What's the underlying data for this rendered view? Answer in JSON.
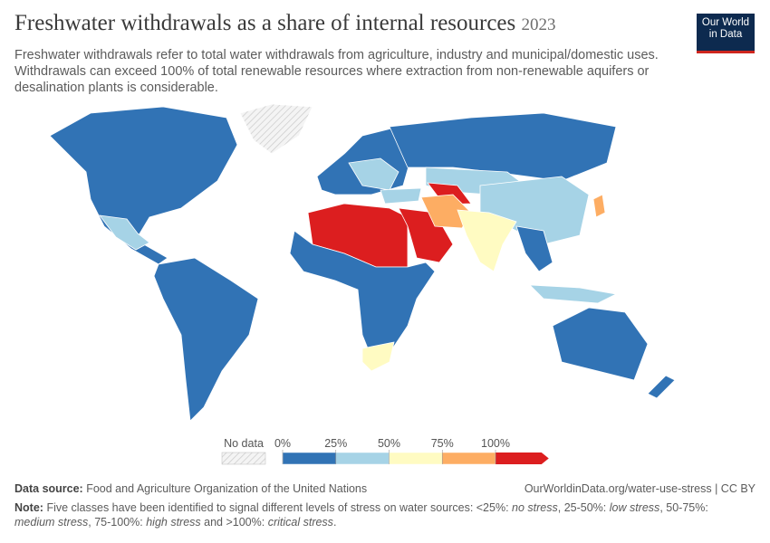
{
  "header": {
    "title": "Freshwater withdrawals as a share of internal resources",
    "year": "2023",
    "subtitle": "Freshwater withdrawals refer to total water withdrawals from agriculture, industry and municipal/domestic uses. Withdrawals can exceed 100% of total renewable resources where extraction from non-renewable aquifers or desalination plants is considerable.",
    "logo": [
      "Our World",
      "in Data"
    ]
  },
  "legend": {
    "no_data_label": "No data",
    "ticks": [
      {
        "value": 0,
        "label": "0%"
      },
      {
        "value": 25,
        "label": "25%"
      },
      {
        "value": 50,
        "label": "50%"
      },
      {
        "value": 75,
        "label": "75%"
      },
      {
        "value": 100,
        "label": "100%"
      }
    ],
    "colors": [
      "#3173b5",
      "#a6d3e6",
      "#fffbc2",
      "#fdad63",
      "#dc1e1f"
    ]
  },
  "footer": {
    "source_label": "Data source:",
    "source": "Food and Agriculture Organization of the United Nations",
    "url": "OurWorldinData.org/water-use-stress | CC BY",
    "note_label": "Note:",
    "note_parts": [
      {
        "text": "Five classes have been identified to signal different levels of stress on water sources: <25%: ",
        "italic": false
      },
      {
        "text": "no stress",
        "italic": true
      },
      {
        "text": ", 25-50%: ",
        "italic": false
      },
      {
        "text": "low stress",
        "italic": true
      },
      {
        "text": ", 50-75%: ",
        "italic": false
      },
      {
        "text": "medium stress",
        "italic": true
      },
      {
        "text": ", 75-100%: ",
        "italic": false
      },
      {
        "text": "high stress",
        "italic": true
      },
      {
        "text": " and >100%: ",
        "italic": false
      },
      {
        "text": "critical stress",
        "italic": true
      },
      {
        "text": ".",
        "italic": false
      }
    ]
  }
}
